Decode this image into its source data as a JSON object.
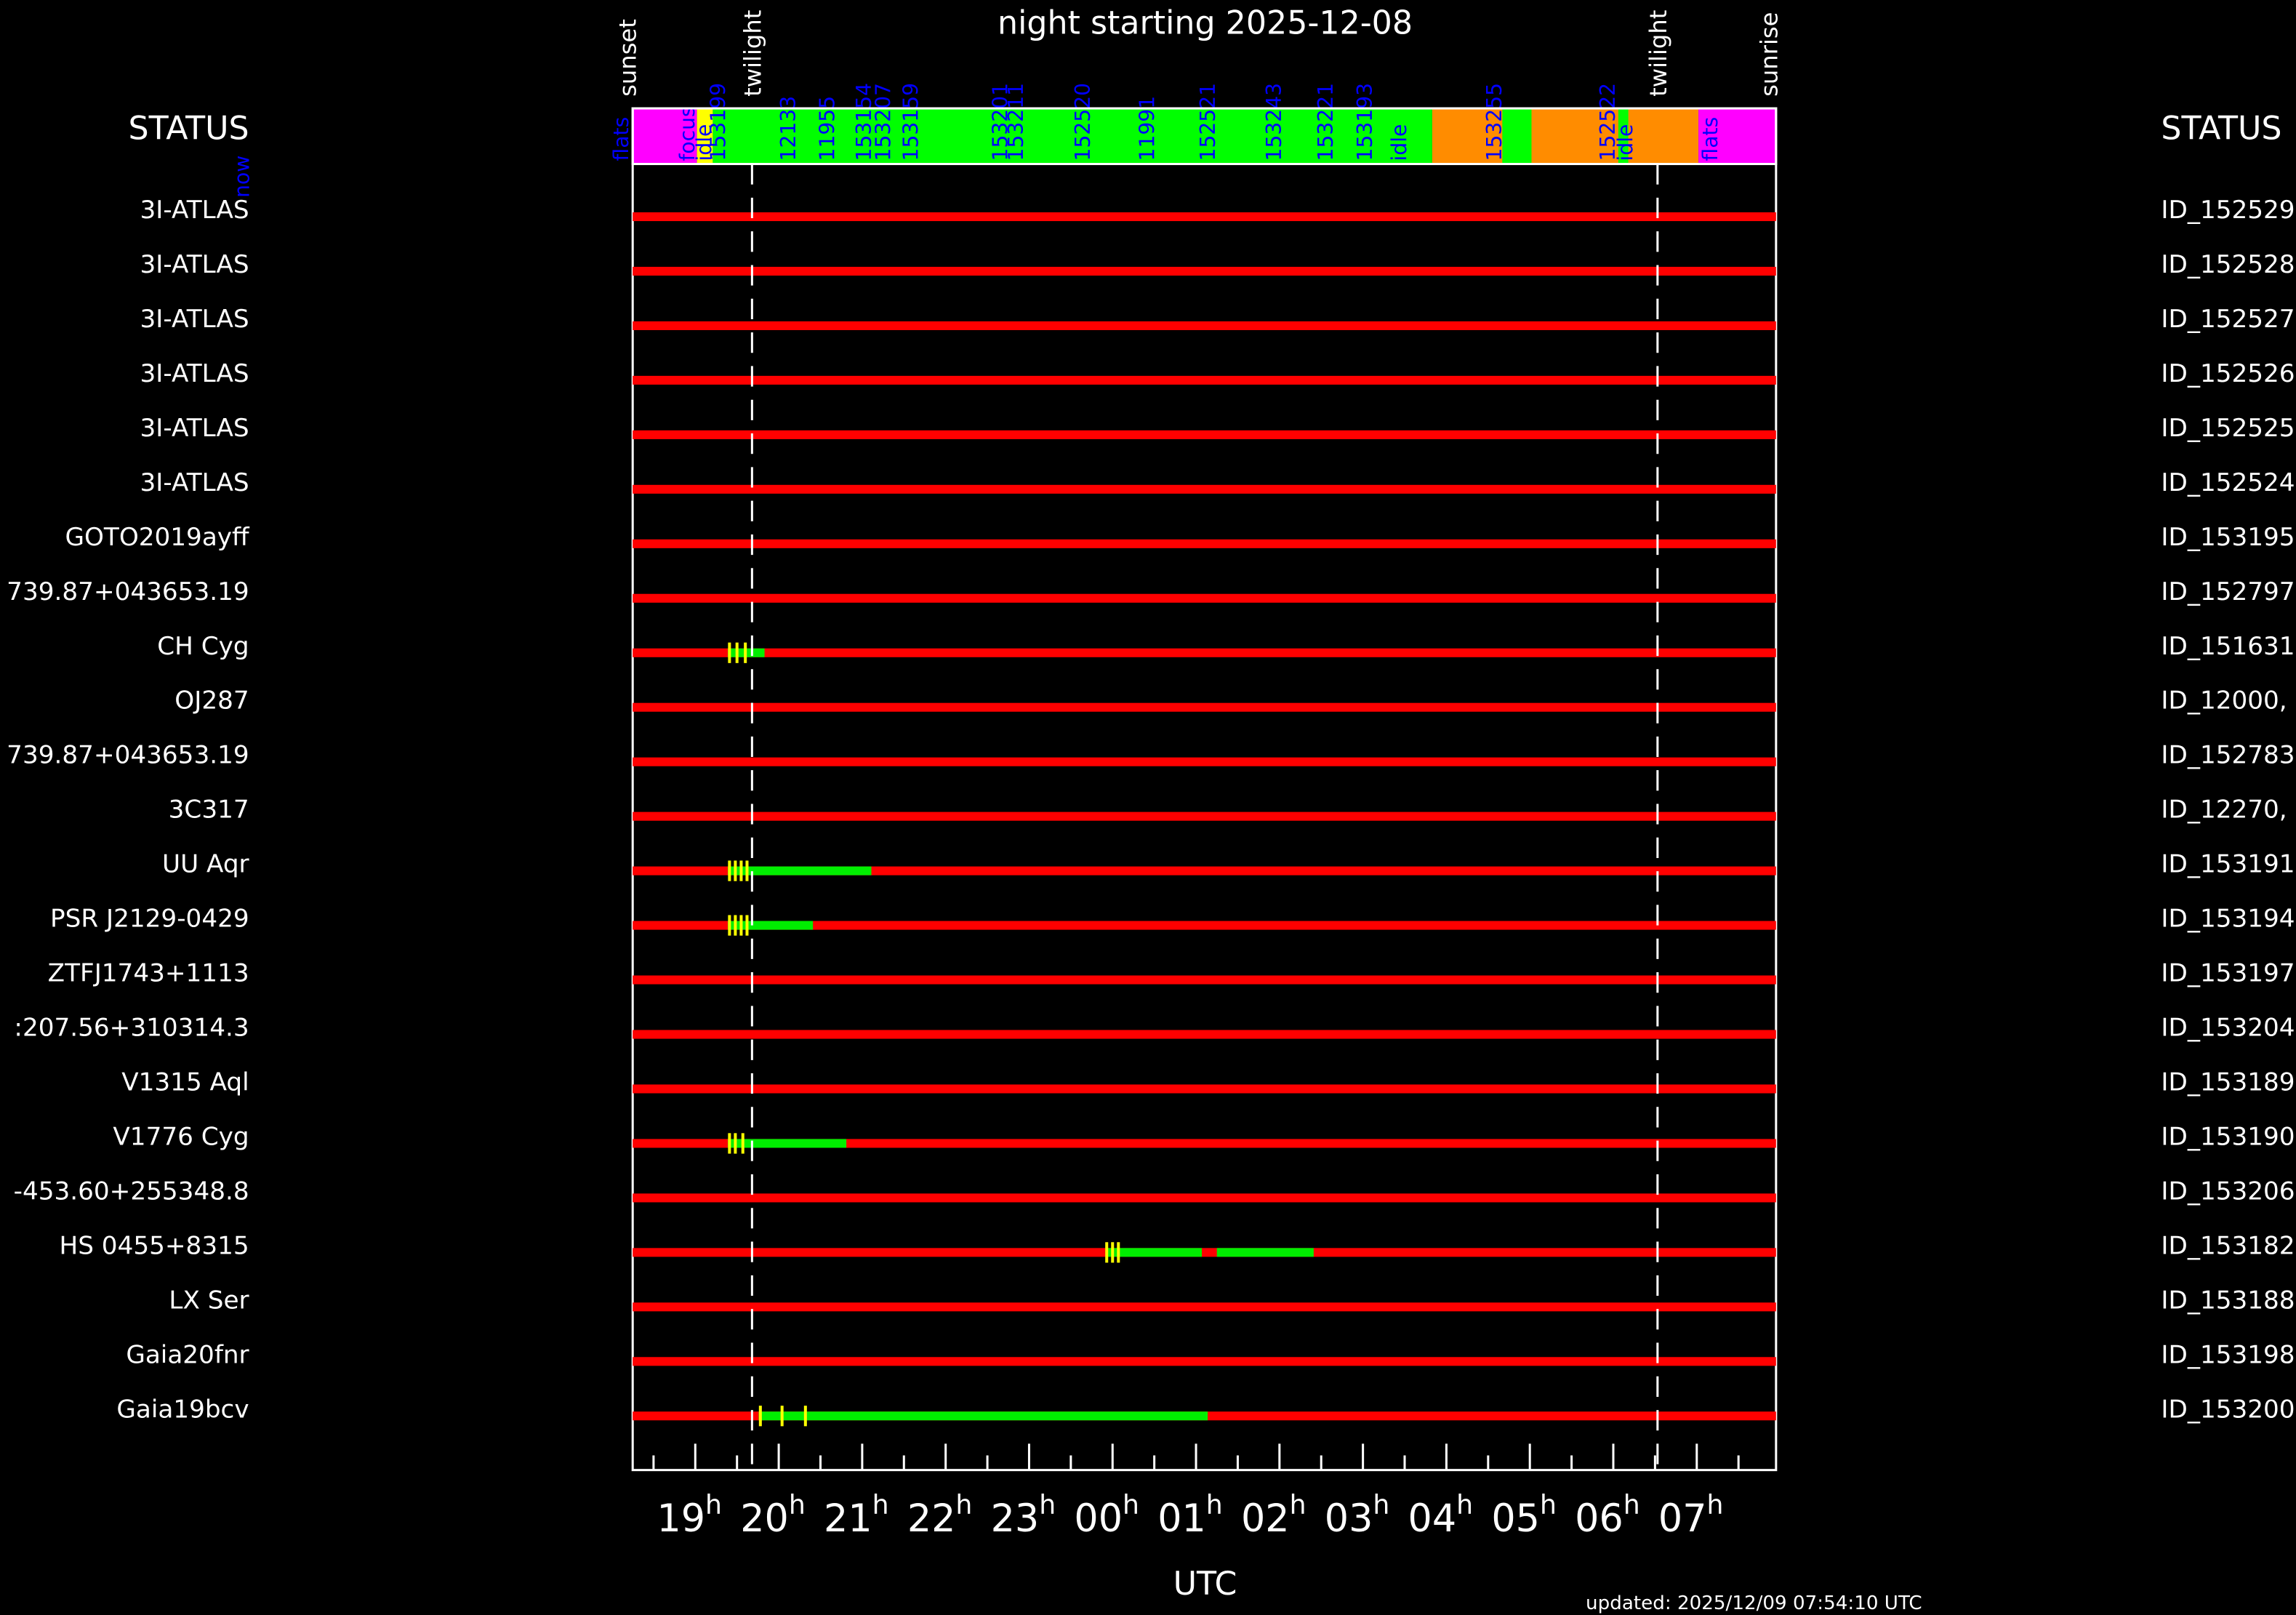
{
  "chart_data": {
    "type": "schedule",
    "title": "night starting 2025-12-08",
    "left_header": "STATUS",
    "right_header": "STATUS",
    "xlabel": "UTC",
    "updated": "updated: 2025/12/09 07:54:10 UTC",
    "x_unit": "h",
    "xlim": [
      18.25,
      31.95
    ],
    "xticks": [
      {
        "value": 19,
        "label": "19"
      },
      {
        "value": 20,
        "label": "20"
      },
      {
        "value": 21,
        "label": "21"
      },
      {
        "value": 22,
        "label": "22"
      },
      {
        "value": 23,
        "label": "23"
      },
      {
        "value": 24,
        "label": "00"
      },
      {
        "value": 25,
        "label": "01"
      },
      {
        "value": 26,
        "label": "02"
      },
      {
        "value": 27,
        "label": "03"
      },
      {
        "value": 28,
        "label": "04"
      },
      {
        "value": 29,
        "label": "05"
      },
      {
        "value": 30,
        "label": "06"
      },
      {
        "value": 31,
        "label": "07"
      }
    ],
    "minor_xticks": [
      18.5,
      19.5,
      20.5,
      21.5,
      22.5,
      23.5,
      24.5,
      25.5,
      26.5,
      27.5,
      28.5,
      29.5,
      30.5,
      31.5
    ],
    "events": [
      {
        "name": "sunset",
        "value": 18.18,
        "line": false
      },
      {
        "name": "twilight",
        "value": 19.68,
        "line": true
      },
      {
        "name": "twilight",
        "value": 30.53,
        "line": true
      },
      {
        "name": "sunrise",
        "value": 31.86,
        "line": false
      }
    ],
    "event_color": "#ffffff",
    "blocks": [
      {
        "start": 18.25,
        "end": 19.02,
        "color": "#ff00ff"
      },
      {
        "start": 19.02,
        "end": 19.21,
        "color": "#ffff00"
      },
      {
        "start": 19.21,
        "end": 27.83,
        "color": "#00ff00"
      },
      {
        "start": 27.83,
        "end": 31.02,
        "color": "#ff8c00"
      },
      {
        "start": 28.67,
        "end": 29.02,
        "color": "#00ff00"
      },
      {
        "start": 30.06,
        "end": 30.18,
        "color": "#00ff00"
      },
      {
        "start": 31.02,
        "end": 31.95,
        "color": "#ff00ff"
      }
    ],
    "block_label_color": "#0000ff",
    "block_labels": [
      {
        "label": "flats",
        "value": 18.11
      },
      {
        "label": "focus",
        "value": 18.9
      },
      {
        "label": "idle",
        "value": 19.1
      },
      {
        "label": "153199",
        "value": 19.27
      },
      {
        "label": "12133",
        "value": 20.11
      },
      {
        "label": "11955",
        "value": 20.58
      },
      {
        "label": "153154",
        "value": 21.02
      },
      {
        "label": "153207",
        "value": 21.25
      },
      {
        "label": "153159",
        "value": 21.58
      },
      {
        "label": "153201",
        "value": 22.65
      },
      {
        "label": "153211",
        "value": 22.84
      },
      {
        "label": "152520",
        "value": 23.64
      },
      {
        "label": "11991",
        "value": 24.41
      },
      {
        "label": "152521",
        "value": 25.14
      },
      {
        "label": "153243",
        "value": 25.93
      },
      {
        "label": "153221",
        "value": 26.55
      },
      {
        "label": "153193",
        "value": 27.02
      },
      {
        "label": "idle",
        "value": 27.43
      },
      {
        "label": "153255",
        "value": 28.57
      },
      {
        "label": "152522",
        "value": 29.93
      },
      {
        "label": "idle",
        "value": 30.14
      },
      {
        "label": "flats",
        "value": 31.16
      }
    ],
    "now_label": "now",
    "idle_color": "#ff0000",
    "active_color": "#00ee00",
    "marker_color": "#ffff00",
    "rows": [
      {
        "name": "3I-ATLAS",
        "id": "ID_152529",
        "segments": [],
        "markers": []
      },
      {
        "name": "3I-ATLAS",
        "id": "ID_152528",
        "segments": [],
        "markers": []
      },
      {
        "name": "3I-ATLAS",
        "id": "ID_152527",
        "segments": [],
        "markers": []
      },
      {
        "name": "3I-ATLAS",
        "id": "ID_152526",
        "segments": [],
        "markers": []
      },
      {
        "name": "3I-ATLAS",
        "id": "ID_152525",
        "segments": [],
        "markers": []
      },
      {
        "name": "3I-ATLAS",
        "id": "ID_152524",
        "segments": [],
        "markers": []
      },
      {
        "name": "GOTO2019ayff",
        "id": "ID_153195",
        "segments": [],
        "markers": []
      },
      {
        "name": "739.87+043653.19",
        "id": "ID_152797",
        "segments": [],
        "markers": []
      },
      {
        "name": "CH Cyg",
        "id": "ID_151631",
        "segments": [
          [
            19.39,
            19.83
          ]
        ],
        "markers": [
          19.41,
          19.5,
          19.6
        ]
      },
      {
        "name": "OJ287",
        "id": "ID_12000,",
        "segments": [],
        "markers": []
      },
      {
        "name": "739.87+043653.19",
        "id": "ID_152783",
        "segments": [],
        "markers": []
      },
      {
        "name": "3C317",
        "id": "ID_12270,",
        "segments": [],
        "markers": []
      },
      {
        "name": "UU Aqr",
        "id": "ID_153191",
        "segments": [
          [
            19.39,
            21.11
          ]
        ],
        "markers": [
          19.41,
          19.48,
          19.55,
          19.62
        ]
      },
      {
        "name": "PSR J2129-0429",
        "id": "ID_153194",
        "segments": [
          [
            19.39,
            20.41
          ]
        ],
        "markers": [
          19.41,
          19.48,
          19.55,
          19.62
        ]
      },
      {
        "name": "ZTFJ1743+1113",
        "id": "ID_153197",
        "segments": [],
        "markers": []
      },
      {
        "name": ":207.56+310314.3",
        "id": "ID_153204",
        "segments": [],
        "markers": []
      },
      {
        "name": "V1315 Aql",
        "id": "ID_153189",
        "segments": [],
        "markers": []
      },
      {
        "name": "V1776 Cyg",
        "id": "ID_153190",
        "segments": [
          [
            19.39,
            20.81
          ]
        ],
        "markers": [
          19.41,
          19.48,
          19.57
        ]
      },
      {
        "name": "-453.60+255348.8",
        "id": "ID_153206",
        "segments": [],
        "markers": []
      },
      {
        "name": "HS 0455+8315",
        "id": "ID_153182",
        "segments": [
          [
            23.92,
            25.07
          ],
          [
            25.25,
            26.41
          ]
        ],
        "markers": [
          23.93,
          24.0,
          24.07
        ]
      },
      {
        "name": "LX Ser",
        "id": "ID_153188",
        "segments": [],
        "markers": []
      },
      {
        "name": "Gaia20fnr",
        "id": "ID_153198",
        "segments": [],
        "markers": []
      },
      {
        "name": "Gaia19bcv",
        "id": "ID_153200",
        "segments": [
          [
            19.76,
            25.14
          ]
        ],
        "markers": [
          19.78,
          20.04,
          20.32
        ]
      }
    ]
  }
}
